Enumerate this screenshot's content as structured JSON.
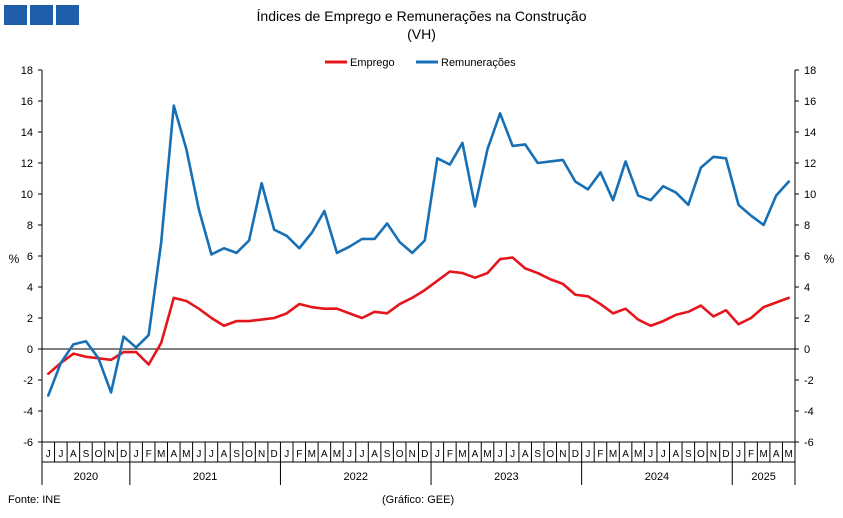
{
  "header": {
    "logo_colors": [
      "#1f5ea8",
      "#1f5ea8",
      "#1f5ea8"
    ]
  },
  "footer": {
    "source": "Fonte: INE",
    "credit": "(Gráfico: GEE)"
  },
  "chart_data": {
    "type": "line",
    "title": "Índices de Emprego e Remunerações na Construção",
    "subtitle": "(VH)",
    "ylabel_left": "%",
    "ylabel_right": "%",
    "ylim": [
      -6,
      18
    ],
    "yticks": [
      -6,
      -4,
      -2,
      0,
      2,
      4,
      6,
      8,
      10,
      12,
      14,
      16,
      18
    ],
    "grid": false,
    "legend_position": "top-center",
    "categories": [
      "J",
      "J",
      "A",
      "S",
      "O",
      "N",
      "D",
      "J",
      "F",
      "M",
      "A",
      "M",
      "J",
      "J",
      "A",
      "S",
      "O",
      "N",
      "D",
      "J",
      "F",
      "M",
      "A",
      "M",
      "J",
      "J",
      "A",
      "S",
      "O",
      "N",
      "D",
      "J",
      "F",
      "M",
      "A",
      "M",
      "J",
      "J",
      "A",
      "S",
      "O",
      "N",
      "D",
      "J",
      "F",
      "M",
      "A",
      "M",
      "J",
      "J",
      "A",
      "S",
      "O",
      "N",
      "D",
      "J",
      "F",
      "M",
      "A",
      "M"
    ],
    "years": [
      {
        "label": "2020",
        "count": 7
      },
      {
        "label": "2021",
        "count": 12
      },
      {
        "label": "2022",
        "count": 12
      },
      {
        "label": "2023",
        "count": 12
      },
      {
        "label": "2024",
        "count": 12
      },
      {
        "label": "2025",
        "count": 5
      }
    ],
    "series": [
      {
        "name": "Emprego",
        "color": "#e4161c",
        "values": [
          -1.6,
          -0.9,
          -0.3,
          -0.5,
          -0.6,
          -0.7,
          -0.2,
          -0.2,
          -1.0,
          0.4,
          3.3,
          3.1,
          2.6,
          2.0,
          1.5,
          1.8,
          1.8,
          1.9,
          2.0,
          2.3,
          2.9,
          2.7,
          2.6,
          2.6,
          2.3,
          2.0,
          2.4,
          2.3,
          2.9,
          3.3,
          3.8,
          4.4,
          5.0,
          4.9,
          4.6,
          4.9,
          5.8,
          5.9,
          5.2,
          4.9,
          4.5,
          4.2,
          3.5,
          3.4,
          2.9,
          2.3,
          2.6,
          1.9,
          1.5,
          1.8,
          2.2,
          2.4,
          2.8,
          2.1,
          2.5,
          1.6,
          2.0,
          2.7,
          3.0,
          3.3
        ]
      },
      {
        "name": "Remunerações",
        "color": "#1770b5",
        "values": [
          -3.0,
          -0.9,
          0.3,
          0.5,
          -0.6,
          -2.8,
          0.8,
          0.1,
          0.9,
          6.9,
          15.7,
          12.9,
          9.0,
          6.1,
          6.5,
          6.2,
          7.0,
          10.7,
          7.7,
          7.3,
          6.5,
          7.5,
          8.9,
          6.2,
          6.6,
          7.1,
          7.1,
          8.1,
          6.9,
          6.2,
          7.0,
          12.3,
          11.9,
          13.3,
          9.2,
          12.9,
          15.2,
          13.1,
          13.2,
          12.0,
          12.1,
          12.2,
          10.8,
          10.3,
          11.4,
          9.6,
          12.1,
          9.9,
          9.6,
          10.5,
          10.1,
          9.3,
          11.7,
          12.4,
          12.3,
          9.3,
          8.6,
          8.0,
          9.9,
          10.8
        ]
      }
    ]
  }
}
